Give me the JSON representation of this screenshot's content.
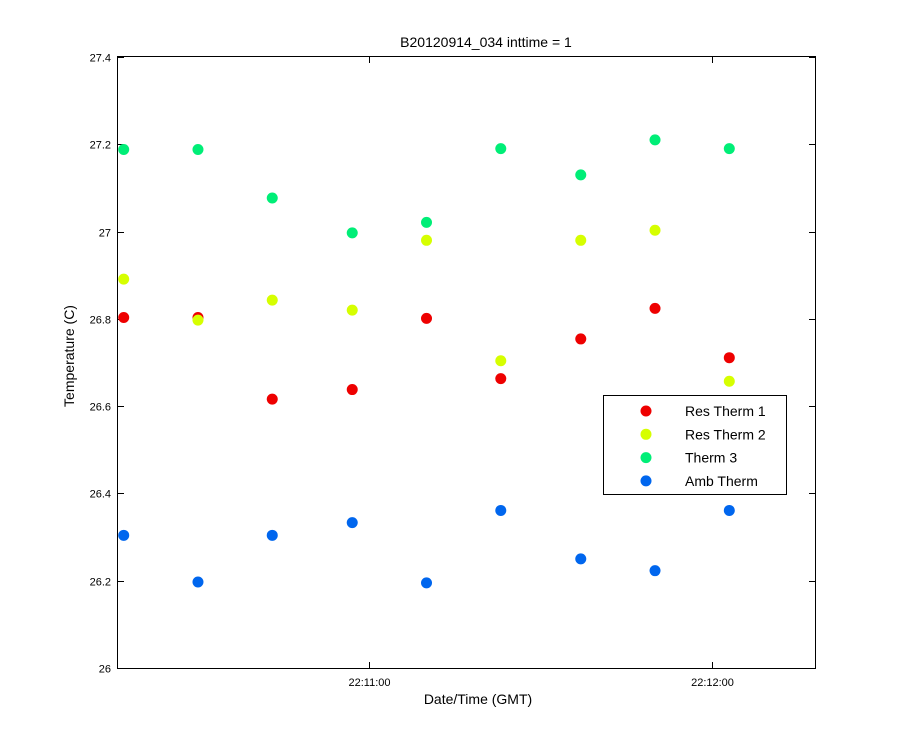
{
  "chart_data": {
    "type": "scatter",
    "title": "B20120914_034 inttime = 1",
    "xlabel": "Date/Time (GMT)",
    "ylabel": "Temperature (C)",
    "x_unit": "time of day (GMT)",
    "xlim": [
      "22:10:16",
      "22:12:18"
    ],
    "x_ticks": [
      "22:11:00",
      "22:12:00"
    ],
    "ylim": [
      26,
      27.4
    ],
    "y_ticks": [
      "26",
      "26.2",
      "26.4",
      "26.6",
      "26.8",
      "27",
      "27.2",
      "27.4"
    ],
    "grid": false,
    "legend_position": "right",
    "x": [
      "22:10:17",
      "22:10:30",
      "22:10:43",
      "22:10:57",
      "22:11:10",
      "22:11:23",
      "22:11:37",
      "22:11:50",
      "22:12:03"
    ],
    "series": [
      {
        "name": "Res Therm 1",
        "color": "#ee0000",
        "values": [
          26.803,
          26.803,
          26.616,
          26.638,
          26.801,
          26.663,
          26.754,
          26.824,
          26.711
        ]
      },
      {
        "name": "Res Therm 2",
        "color": "#d6ff00",
        "values": [
          26.891,
          26.797,
          26.843,
          26.82,
          26.98,
          26.704,
          26.98,
          27.003,
          26.657
        ]
      },
      {
        "name": "Therm 3",
        "color": "#00ee77",
        "values": [
          27.188,
          27.188,
          27.077,
          26.997,
          27.021,
          27.19,
          27.13,
          27.21,
          27.19
        ]
      },
      {
        "name": "Amb Therm",
        "color": "#0066ee",
        "values": [
          26.304,
          26.197,
          26.304,
          26.333,
          26.195,
          26.361,
          26.25,
          26.223,
          26.361
        ]
      }
    ]
  }
}
